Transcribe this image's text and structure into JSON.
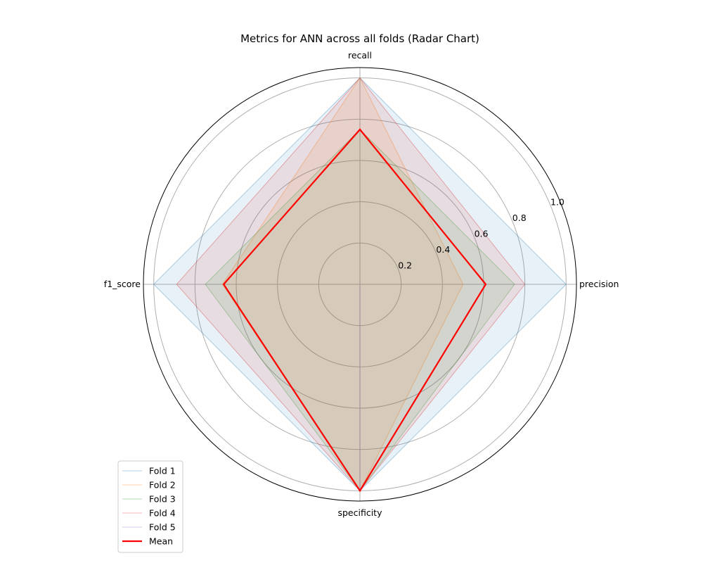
{
  "chart_data": {
    "type": "radar",
    "title": "Metrics for ANN across all folds (Radar Chart)",
    "axes": [
      "precision",
      "recall",
      "f1_score",
      "specificity"
    ],
    "radial_ticks": [
      "0.2",
      "0.4",
      "0.6",
      "0.8",
      "1.0"
    ],
    "radial_tick_values": [
      0.2,
      0.4,
      0.6,
      0.8,
      1.0
    ],
    "rlim": [
      0,
      1.05
    ],
    "grid": true,
    "legend_position": "lower-left",
    "series": [
      {
        "name": "Fold 1",
        "color": "#1f77b4",
        "values": [
          1.0,
          1.0,
          1.0,
          1.0
        ]
      },
      {
        "name": "Fold 2",
        "color": "#ff7f0e",
        "values": [
          0.5,
          1.0,
          0.667,
          1.0
        ]
      },
      {
        "name": "Fold 3",
        "color": "#2ca02c",
        "values": [
          0.75,
          0.75,
          0.75,
          1.0
        ]
      },
      {
        "name": "Fold 4",
        "color": "#d62728",
        "values": [
          0.8,
          1.0,
          0.889,
          1.0
        ]
      },
      {
        "name": "Fold 5",
        "color": "#9467bd",
        "values": [
          0.0,
          0.0,
          0.0,
          1.0
        ]
      },
      {
        "name": "Mean",
        "color": "#ff0000",
        "values": [
          0.61,
          0.75,
          0.661,
          1.0
        ]
      }
    ]
  }
}
